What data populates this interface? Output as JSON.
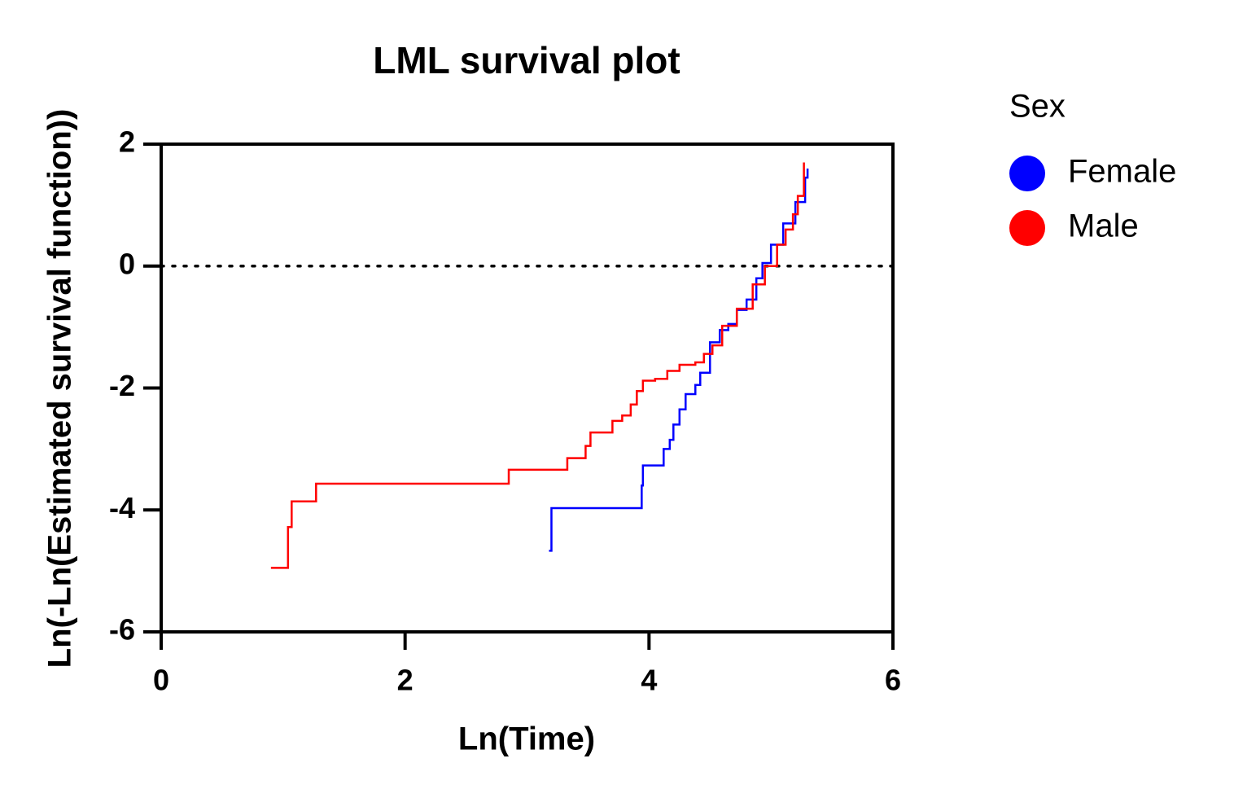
{
  "chart_data": {
    "type": "step",
    "title": "LML survival plot",
    "x_label": "Ln(Time)",
    "y_label": "Ln(-Ln(Estimated survival function))",
    "xlim": [
      0,
      6
    ],
    "xticks": [
      0,
      2,
      4,
      6
    ],
    "ylim": [
      -6,
      2
    ],
    "yticks": [
      -6,
      -4,
      -2,
      0,
      2
    ],
    "reference_line": 0,
    "legend_title": "Sex",
    "legend_position": "right",
    "series": [
      {
        "name": "Female",
        "color": "#0000ff",
        "x": [
          3.18,
          3.2,
          3.94,
          3.95,
          4.12,
          4.17,
          4.2,
          4.25,
          4.3,
          4.38,
          4.42,
          4.5,
          4.58,
          4.65,
          4.72,
          4.8,
          4.88,
          4.93,
          5.0,
          5.1,
          5.2,
          5.28,
          5.3
        ],
        "values": [
          -4.67,
          -3.97,
          -3.6,
          -3.27,
          -3.0,
          -2.85,
          -2.6,
          -2.35,
          -2.1,
          -1.95,
          -1.75,
          -1.25,
          -1.05,
          -0.95,
          -0.72,
          -0.55,
          -0.2,
          0.05,
          0.35,
          0.7,
          1.05,
          1.45,
          1.6
        ]
      },
      {
        "name": "Male",
        "color": "#ff0000",
        "x": [
          0.9,
          1.04,
          1.07,
          1.27,
          2.85,
          3.33,
          3.48,
          3.52,
          3.7,
          3.78,
          3.85,
          3.9,
          3.95,
          4.05,
          4.15,
          4.25,
          4.38,
          4.45,
          4.52,
          4.6,
          4.72,
          4.85,
          4.95,
          5.05,
          5.12,
          5.18,
          5.22,
          5.27
        ],
        "values": [
          -4.95,
          -4.28,
          -3.86,
          -3.57,
          -3.34,
          -3.15,
          -2.95,
          -2.73,
          -2.54,
          -2.45,
          -2.27,
          -2.05,
          -1.88,
          -1.85,
          -1.72,
          -1.62,
          -1.58,
          -1.44,
          -1.3,
          -0.98,
          -0.7,
          -0.3,
          0.0,
          0.35,
          0.6,
          0.85,
          1.15,
          1.7
        ]
      }
    ]
  }
}
